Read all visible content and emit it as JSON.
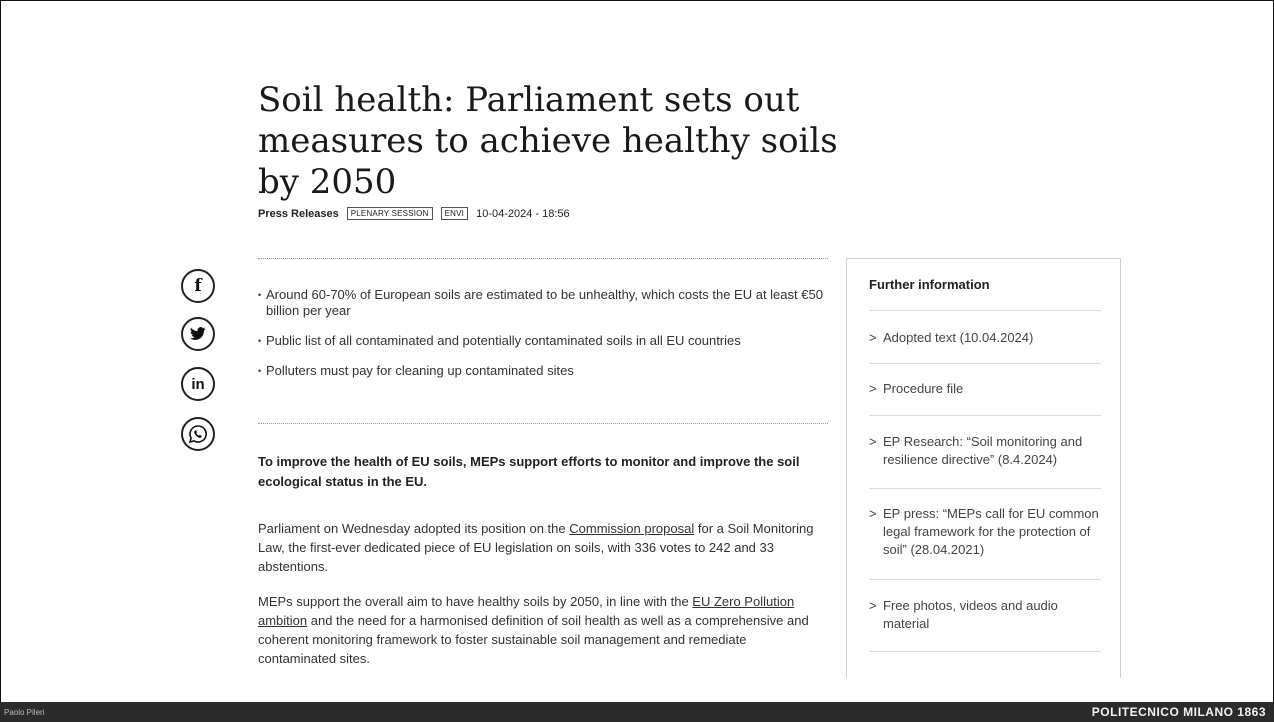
{
  "article": {
    "title": "Soil health: Parliament sets out measures to achieve healthy soils by 2050",
    "section": "Press Releases",
    "tags": [
      "PLENARY SESSION",
      "ENVI"
    ],
    "date": "10-04-2024 - 18:56",
    "bullets": [
      "Around 60-70% of European soils are estimated to be unhealthy, which costs the EU at least €50 billion per year",
      "Public list of all contaminated and potentially contaminated soils in all EU countries",
      "Polluters must pay for cleaning up contaminated sites"
    ],
    "lead": "To improve the health of EU soils, MEPs support efforts to monitor and improve the soil ecological status in the EU.",
    "p1": {
      "before": "Parliament on Wednesday adopted its position on the ",
      "link": "Commission proposal",
      "after": " for a Soil Monitoring Law, the first-ever dedicated piece of EU legislation on soils, with 336 votes to 242 and 33 abstentions."
    },
    "p2": {
      "before": "MEPs support the overall aim to have healthy soils by 2050, in line with the ",
      "link": "EU Zero Pollution ambition",
      "after": " and the need for a harmonised definition of soil health as well as a comprehensive and coherent monitoring framework to foster sustainable soil management and remediate contaminated sites."
    }
  },
  "share": {
    "facebook": "f",
    "twitter": "🐦",
    "linkedin": "in",
    "whatsapp": "✆",
    "icons": [
      "facebook-icon",
      "twitter-icon",
      "linkedin-icon",
      "whatsapp-icon"
    ]
  },
  "sidebar": {
    "title": "Further information",
    "chevron": ">",
    "items": [
      "Adopted text (10.04.2024)",
      "Procedure file",
      "EP Research: “Soil monitoring and resilience directive” (8.4.2024)",
      "EP press: “MEPs call for EU common legal framework for the protection of soil” (28.04.2021)",
      "Free photos, videos and audio material"
    ]
  },
  "footer": {
    "author": "Paolo Pileri",
    "brand": "POLITECNICO MILANO 1863"
  },
  "colors": {
    "footer_bg": "#2b2b2b",
    "text": "#222222"
  }
}
